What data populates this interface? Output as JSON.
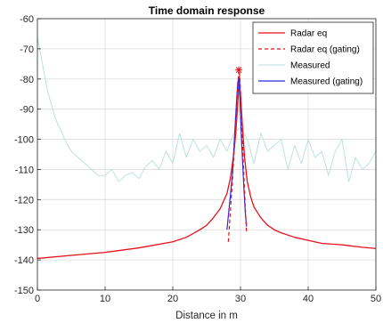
{
  "chart_data": {
    "type": "line",
    "title": "Time domain response",
    "xlabel": "Distance in m",
    "ylabel": "",
    "xlim": [
      0,
      50
    ],
    "ylim": [
      -150,
      -60
    ],
    "xticks": [
      "0",
      "10",
      "20",
      "30",
      "40",
      "50"
    ],
    "yticks": [
      "-150",
      "-140",
      "-130",
      "-120",
      "-110",
      "-100",
      "-90",
      "-80",
      "-70",
      "-60"
    ],
    "grid": true,
    "legend_position": "top-right",
    "colors": {
      "radar": "#e8101a",
      "radar_gating": "#e8101a",
      "measured": "#b9e0dc",
      "measured_gating": "#2a2ae0"
    },
    "series": [
      {
        "name": "Radar eq",
        "x": [
          0,
          5,
          10,
          15,
          20,
          22,
          24,
          25,
          26,
          27,
          28,
          28.5,
          29,
          29.3,
          29.6,
          29.8,
          30,
          30.3,
          30.6,
          31,
          31.5,
          32,
          33,
          34,
          35,
          36,
          38,
          40,
          42,
          45,
          48,
          50
        ],
        "y": [
          -139.5,
          -138.5,
          -137.5,
          -136,
          -134,
          -132.5,
          -130,
          -128.5,
          -126,
          -123,
          -118,
          -113,
          -105,
          -98,
          -88,
          -79,
          -85,
          -96,
          -106,
          -114,
          -119,
          -122.5,
          -126,
          -128.5,
          -130,
          -131,
          -132.5,
          -133.5,
          -134.5,
          -135,
          -135.8,
          -136.2
        ]
      },
      {
        "name": "Radar eq (gating)",
        "x": [
          28.2,
          28.5,
          28.8,
          29.1,
          29.4,
          29.6,
          29.75,
          29.9,
          30.1,
          30.3,
          30.5,
          30.7,
          30.9
        ],
        "y": [
          -134,
          -124,
          -114,
          -102,
          -91,
          -82,
          -77,
          -79,
          -90,
          -101,
          -112,
          -122,
          -131
        ]
      },
      {
        "name": "Measured",
        "x": [
          0,
          0.5,
          1,
          1.5,
          2,
          2.5,
          3,
          3.5,
          4,
          4.5,
          5,
          6,
          7,
          8,
          9,
          10,
          11,
          12,
          13,
          14,
          15,
          16,
          17,
          18,
          19,
          20,
          21,
          22,
          23,
          24,
          25,
          26,
          27,
          28,
          29,
          30,
          31,
          32,
          33,
          34,
          35,
          36,
          37,
          38,
          39,
          40,
          41,
          42,
          43,
          44,
          45,
          46,
          47,
          48,
          49,
          50
        ],
        "y": [
          -66,
          -72,
          -78,
          -84,
          -88,
          -92,
          -95,
          -97,
          -100,
          -102,
          -104,
          -106,
          -108,
          -110,
          -112,
          -112,
          -110,
          -114,
          -112,
          -111,
          -113,
          -109,
          -107,
          -110,
          -104,
          -108,
          -98,
          -106,
          -100,
          -104,
          -102,
          -106,
          -100,
          -104,
          -98,
          -96,
          -100,
          -108,
          -98,
          -104,
          -102,
          -100,
          -110,
          -102,
          -108,
          -100,
          -106,
          -104,
          -112,
          -104,
          -100,
          -114,
          -106,
          -110,
          -108,
          -104
        ]
      },
      {
        "name": "Measured (gating)",
        "x": [
          28,
          28.4,
          28.8,
          29,
          29.2,
          29.4,
          29.6,
          29.75,
          29.9,
          30.1,
          30.3,
          30.5,
          30.7,
          30.9
        ],
        "y": [
          -130,
          -121,
          -112,
          -104,
          -96,
          -88,
          -81,
          -80,
          -86,
          -97,
          -107,
          -116,
          -124,
          -129
        ]
      }
    ]
  }
}
